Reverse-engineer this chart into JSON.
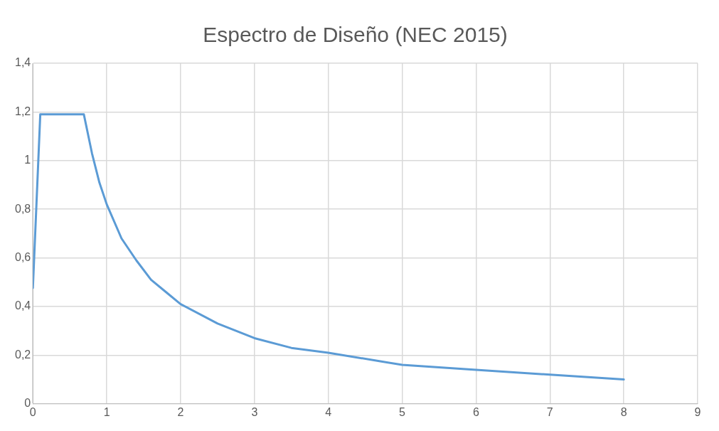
{
  "chart_data": {
    "type": "line",
    "title": "Espectro de Diseño (NEC 2015)",
    "x": [
      0,
      0.1,
      0.69,
      0.8,
      0.9,
      1,
      1.2,
      1.4,
      1.6,
      1.8,
      2,
      2.5,
      3,
      3.5,
      4,
      5,
      6,
      7,
      8
    ],
    "series": [
      {
        "color": "#5b9bd5",
        "values": [
          0.476,
          1.19,
          1.19,
          1.03,
          0.91,
          0.82,
          0.68,
          0.59,
          0.51,
          0.46,
          0.41,
          0.33,
          0.27,
          0.23,
          0.21,
          0.16,
          0.14,
          0.12,
          0.1
        ]
      }
    ],
    "xlim": [
      0,
      9
    ],
    "xticks": [
      0,
      1,
      2,
      3,
      4,
      5,
      6,
      7,
      8,
      9
    ],
    "ylim": [
      0,
      1.4
    ],
    "yticks": [
      0,
      {
        "value": 0.2,
        "label": "0,2"
      },
      {
        "value": 0.4,
        "label": "0,4"
      },
      {
        "value": 0.6,
        "label": "0,6"
      },
      {
        "value": 0.8,
        "label": "0,8"
      },
      1,
      {
        "value": 1.2,
        "label": "1,2"
      },
      {
        "value": 1.4,
        "label": "1,4"
      }
    ],
    "grid": true,
    "legend": false,
    "marker": "none",
    "line_style": "solid"
  }
}
